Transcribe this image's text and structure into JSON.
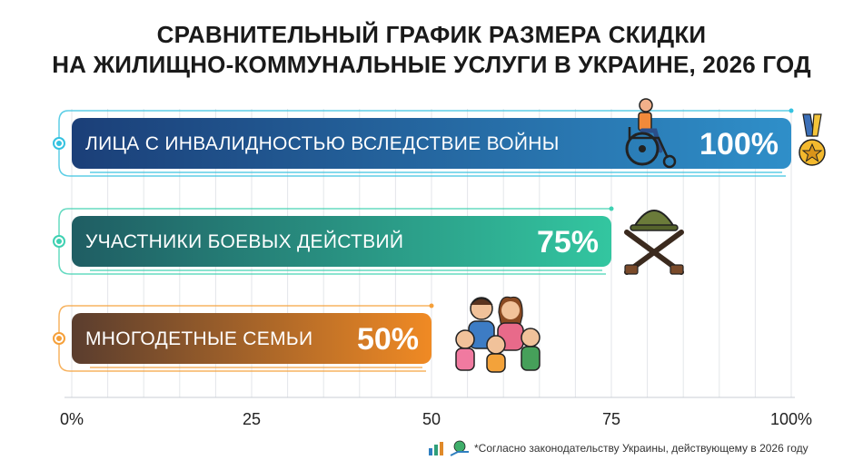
{
  "title_line1": "СРАВНИТЕЛЬНЫЙ ГРАФИК РАЗМЕРА СКИДКИ",
  "title_line2": "НА ЖИЛИЩНО-КОММУНАЛЬНЫЕ УСЛУГИ В УКРАИНЕ, 2026 ГОД",
  "footnote": "*Согласно законодательству Украины, действующему в 2026 году",
  "icons": [
    "wheelchair-icon",
    "medal-icon",
    "helmet-crossed-rifles-icon",
    "family-icon",
    "growth-chart-icon",
    "money-hand-icon"
  ],
  "chart_data": {
    "type": "bar",
    "orientation": "horizontal",
    "categories": [
      "ЛИЦА С ИНВАЛИДНОСТЬЮ ВСЛЕДСТВИЕ ВОЙНЫ",
      "УЧАСТНИКИ БОЕВЫХ ДЕЙСТВИЙ",
      "МНОГОДЕТНЫЕ СЕМЬИ"
    ],
    "values": [
      100,
      75,
      50
    ],
    "value_labels": [
      "100%",
      "75%",
      "50%"
    ],
    "xlim": [
      0,
      100
    ],
    "xticks": [
      0,
      25,
      50,
      75,
      100
    ],
    "xtick_labels": [
      "0%",
      "25",
      "50",
      "75",
      "100%"
    ],
    "grid": true,
    "colors": [
      [
        "#1b3f78",
        "#2f8fc9"
      ],
      [
        "#1f5d63",
        "#33c6a0"
      ],
      [
        "#5a3d2e",
        "#f08a24"
      ]
    ],
    "glow_colors": [
      "#35c2e0",
      "#3fd1b2",
      "#f5a03a"
    ]
  }
}
